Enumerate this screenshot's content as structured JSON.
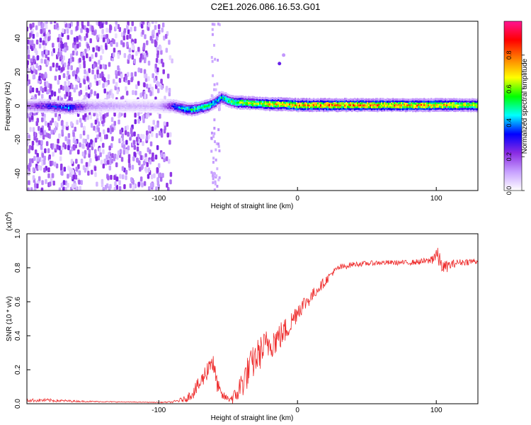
{
  "title": "C2E1.2026.086.16.53.G01",
  "chart_data": [
    {
      "type": "heatmap",
      "title": "C2E1.2026.086.16.53.G01",
      "xlabel": "Height of straight line (km)",
      "ylabel": "Frequency (Hz)",
      "xlim": [
        -195,
        130
      ],
      "ylim": [
        -50,
        50
      ],
      "xticks": [
        -100,
        0,
        100
      ],
      "xtick_labels": [
        "-100",
        "0",
        "100"
      ],
      "yticks": [
        -40,
        -20,
        0,
        20,
        40
      ],
      "ytick_labels": [
        "-40",
        "-20",
        "0",
        "20",
        "40"
      ],
      "colorbar": {
        "label": "Normalized spectral amplitude",
        "range": [
          0,
          1
        ],
        "ticks": [
          0.0,
          0.2,
          0.4,
          0.6,
          0.8
        ],
        "tick_labels": [
          "0.0",
          "0.2",
          "0.4",
          "0.6",
          "0.8"
        ],
        "colormap": [
          "#ffffff",
          "#c7a0ff",
          "#8a2be2",
          "#0000ff",
          "#00ffff",
          "#00ff00",
          "#ffff00",
          "#ff8000",
          "#ff0000",
          "#ff1493"
        ]
      },
      "ridge": {
        "description": "Main energy band along 0 Hz",
        "x": [
          -195,
          -180,
          -165,
          -150,
          -120,
          -100,
          -90,
          -85,
          -80,
          -75,
          -70,
          -65,
          -60,
          -55,
          -50,
          -45,
          -40,
          -30,
          -20,
          -10,
          0,
          20,
          40,
          60,
          80,
          100,
          120,
          130
        ],
        "freq_hz": [
          0,
          0,
          -1,
          0,
          0,
          0,
          0,
          -1,
          -2,
          -2,
          -1,
          0,
          2,
          5,
          3,
          2,
          2,
          1.5,
          1,
          1,
          0.5,
          0.5,
          0.5,
          0.5,
          0.5,
          0.5,
          0.5,
          0.5
        ],
        "amplitude": [
          0.2,
          0.35,
          0.45,
          0.15,
          0.1,
          0.1,
          0.35,
          0.5,
          0.55,
          0.6,
          0.6,
          0.65,
          0.5,
          0.55,
          0.6,
          0.65,
          0.7,
          0.75,
          0.8,
          0.85,
          0.9,
          0.9,
          0.88,
          0.87,
          0.86,
          0.85,
          0.8,
          0.75
        ]
      },
      "noise_region": {
        "x_range": [
          -195,
          -90
        ],
        "freq_range": [
          -50,
          50
        ],
        "amplitude": 0.2
      },
      "isolated_points": [
        {
          "x": -13,
          "freq_hz": 25,
          "amplitude": 0.25
        },
        {
          "x": -10,
          "freq_hz": 30,
          "amplitude": 0.12
        },
        {
          "x": -60,
          "freq_hz": -40,
          "amplitude": 0.1
        }
      ]
    },
    {
      "type": "line",
      "title": "",
      "xlabel": "Height of straight line (km)",
      "ylabel": "SNR (10 * v/v)",
      "yscale_label": "(x10",
      "yscale_exponent": "4",
      "yscale_suffix": ")",
      "xlim": [
        -195,
        130
      ],
      "ylim": [
        0,
        1.0
      ],
      "xticks": [
        -100,
        0,
        100
      ],
      "xtick_labels": [
        "-100",
        "0",
        "100"
      ],
      "yticks": [
        0.0,
        0.2,
        0.4,
        0.6,
        0.8,
        1.0
      ],
      "ytick_labels": [
        "0.0",
        "0.2",
        "0.4",
        "0.6",
        "0.8",
        "1.0"
      ],
      "series": [
        {
          "name": "SNR",
          "color": "#ee2b2b",
          "x": [
            -195,
            -180,
            -160,
            -140,
            -120,
            -100,
            -90,
            -80,
            -75,
            -70,
            -65,
            -62,
            -58,
            -55,
            -50,
            -45,
            -40,
            -35,
            -30,
            -25,
            -20,
            -15,
            -10,
            -5,
            0,
            5,
            10,
            15,
            20,
            25,
            30,
            40,
            60,
            80,
            95,
            100,
            105,
            115,
            130
          ],
          "y": [
            0.02,
            0.02,
            0.015,
            0.012,
            0.01,
            0.008,
            0.01,
            0.03,
            0.07,
            0.12,
            0.2,
            0.27,
            0.12,
            0.05,
            0.03,
            0.04,
            0.12,
            0.2,
            0.27,
            0.32,
            0.36,
            0.38,
            0.42,
            0.47,
            0.55,
            0.59,
            0.63,
            0.68,
            0.72,
            0.77,
            0.8,
            0.82,
            0.83,
            0.83,
            0.84,
            0.88,
            0.8,
            0.83,
            0.84
          ],
          "noise": [
            0.01,
            0.01,
            0.005,
            0.003,
            0.002,
            0.002,
            0.005,
            0.02,
            0.04,
            0.05,
            0.06,
            0.08,
            0.05,
            0.03,
            0.02,
            0.05,
            0.09,
            0.1,
            0.1,
            0.1,
            0.1,
            0.09,
            0.08,
            0.07,
            0.06,
            0.05,
            0.04,
            0.03,
            0.03,
            0.02,
            0.02,
            0.015,
            0.015,
            0.015,
            0.02,
            0.06,
            0.04,
            0.02,
            0.02
          ]
        }
      ]
    }
  ]
}
